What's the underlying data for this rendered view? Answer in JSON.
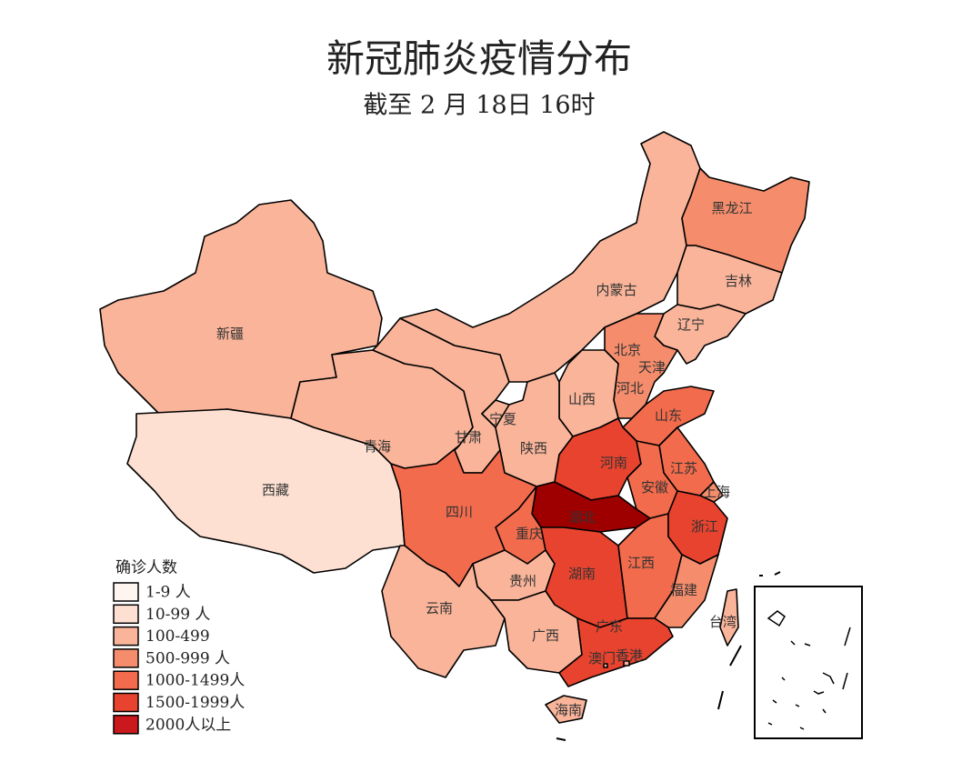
{
  "header": {
    "title": "新冠肺炎疫情分布",
    "subtitle": "截至 2 月 18日 16时"
  },
  "legend": {
    "title": "确诊人数",
    "items": [
      {
        "label": "1-9 人",
        "color": "#fff5f0"
      },
      {
        "label": "10-99 人",
        "color": "#fde0d2"
      },
      {
        "label": "100-499",
        "color": "#f9b49a"
      },
      {
        "label": "500-999 人",
        "color": "#f58d6c"
      },
      {
        "label": "1000-1499人",
        "color": "#f26b4c"
      },
      {
        "label": "1500-1999人",
        "color": "#e8432e"
      },
      {
        "label": "2000人以上",
        "color": "#cb181d"
      }
    ]
  },
  "provinces": [
    {
      "name": "新疆",
      "color": "#f9b49a"
    },
    {
      "name": "西藏",
      "color": "#fde0d2"
    },
    {
      "name": "青海",
      "color": "#f9b49a"
    },
    {
      "name": "甘肃",
      "color": "#f9b49a"
    },
    {
      "name": "宁夏",
      "color": "#f9b49a"
    },
    {
      "name": "内蒙古",
      "color": "#f9b49a"
    },
    {
      "name": "黑龙江",
      "color": "#f58d6c"
    },
    {
      "name": "吉林",
      "color": "#f9b49a"
    },
    {
      "name": "辽宁",
      "color": "#f9b49a"
    },
    {
      "name": "北京",
      "color": "#f58d6c"
    },
    {
      "name": "天津",
      "color": "#f9b49a"
    },
    {
      "name": "河北",
      "color": "#f58d6c"
    },
    {
      "name": "山西",
      "color": "#f9b49a"
    },
    {
      "name": "陕西",
      "color": "#f9b49a"
    },
    {
      "name": "山东",
      "color": "#f26b4c"
    },
    {
      "name": "河南",
      "color": "#e8432e"
    },
    {
      "name": "江苏",
      "color": "#f26b4c"
    },
    {
      "name": "安徽",
      "color": "#f26b4c"
    },
    {
      "name": "上海",
      "color": "#f58d6c"
    },
    {
      "name": "湖北",
      "color": "#9e0000"
    },
    {
      "name": "重庆",
      "color": "#f26b4c"
    },
    {
      "name": "四川",
      "color": "#f26b4c"
    },
    {
      "name": "贵州",
      "color": "#f9b49a"
    },
    {
      "name": "云南",
      "color": "#f9b49a"
    },
    {
      "name": "湖南",
      "color": "#e8432e"
    },
    {
      "name": "江西",
      "color": "#f26b4c"
    },
    {
      "name": "浙江",
      "color": "#e8432e"
    },
    {
      "name": "福建",
      "color": "#f58d6c"
    },
    {
      "name": "台湾",
      "color": "#f9b49a"
    },
    {
      "name": "广西",
      "color": "#f9b49a"
    },
    {
      "name": "广东",
      "color": "#e8432e"
    },
    {
      "name": "香港",
      "color": "#f9b49a"
    },
    {
      "name": "澳门",
      "color": "#f9b49a"
    },
    {
      "name": "海南",
      "color": "#f9b49a"
    }
  ]
}
